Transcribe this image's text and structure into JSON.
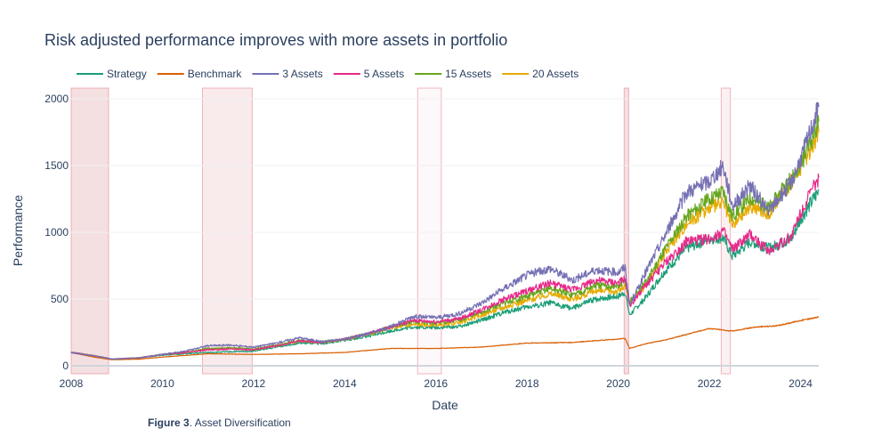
{
  "chart_data": {
    "type": "line",
    "title": "Risk adjusted performance improves with more assets in portfolio",
    "xlabel": "Date",
    "ylabel": "Performance",
    "xlim": [
      2008.0,
      2024.4
    ],
    "ylim": [
      -60,
      2080
    ],
    "x_ticks": [
      "2008",
      "2010",
      "2012",
      "2014",
      "2016",
      "2018",
      "2020",
      "2022",
      "2024"
    ],
    "y_ticks": [
      "0",
      "500",
      "1000",
      "1500",
      "2000"
    ],
    "legend_position": "top-left horizontal",
    "grid": "horizontal",
    "shaded_periods": [
      {
        "start": 2008.0,
        "end": 2008.82,
        "opacity": 0.7
      },
      {
        "start": 2010.88,
        "end": 2011.97,
        "opacity": 0.45
      },
      {
        "start": 2015.6,
        "end": 2016.12,
        "opacity": 0.15
      },
      {
        "start": 2020.13,
        "end": 2020.23,
        "opacity": 0.7
      },
      {
        "start": 2022.26,
        "end": 2022.46,
        "opacity": 0.3
      }
    ],
    "series": [
      {
        "name": "Strategy",
        "color": "#1b9e77",
        "x": [
          2008.0,
          2008.5,
          2008.9,
          2009.5,
          2010.0,
          2010.5,
          2011.0,
          2011.5,
          2012.0,
          2012.5,
          2013.0,
          2013.5,
          2014.0,
          2014.5,
          2015.0,
          2015.5,
          2016.0,
          2016.5,
          2017.0,
          2017.5,
          2018.0,
          2018.5,
          2019.0,
          2019.5,
          2020.0,
          2020.15,
          2020.25,
          2020.6,
          2021.0,
          2021.5,
          2022.0,
          2022.3,
          2022.5,
          2022.9,
          2023.3,
          2023.8,
          2024.0,
          2024.4
        ],
        "y": [
          100,
          75,
          50,
          60,
          80,
          90,
          100,
          105,
          110,
          140,
          170,
          165,
          190,
          220,
          260,
          290,
          285,
          295,
          340,
          400,
          440,
          470,
          430,
          500,
          520,
          550,
          380,
          510,
          700,
          880,
          950,
          960,
          820,
          930,
          880,
          950,
          1100,
          1310
        ]
      },
      {
        "name": "Benchmark",
        "color": "#d95f02",
        "x": [
          2008.0,
          2008.5,
          2008.9,
          2009.5,
          2010.0,
          2011.0,
          2012.0,
          2013.0,
          2014.0,
          2015.0,
          2016.0,
          2017.0,
          2018.0,
          2019.0,
          2020.0,
          2020.15,
          2020.25,
          2020.6,
          2021.0,
          2022.0,
          2022.5,
          2023.0,
          2023.5,
          2024.0,
          2024.4
        ],
        "y": [
          100,
          65,
          45,
          50,
          65,
          90,
          85,
          90,
          100,
          130,
          130,
          140,
          170,
          175,
          200,
          205,
          130,
          165,
          190,
          280,
          260,
          290,
          300,
          340,
          365
        ]
      },
      {
        "name": "3 Assets",
        "color": "#7570b3",
        "x": [
          2008.0,
          2008.5,
          2008.9,
          2009.5,
          2010.0,
          2010.5,
          2011.0,
          2011.5,
          2012.0,
          2012.5,
          2013.0,
          2013.5,
          2014.0,
          2014.5,
          2015.0,
          2015.5,
          2016.0,
          2016.5,
          2017.0,
          2017.5,
          2018.0,
          2018.5,
          2019.0,
          2019.5,
          2020.0,
          2020.15,
          2020.25,
          2020.6,
          2021.0,
          2021.5,
          2022.0,
          2022.3,
          2022.5,
          2022.9,
          2023.3,
          2023.8,
          2024.0,
          2024.4
        ],
        "y": [
          100,
          75,
          50,
          60,
          85,
          110,
          150,
          155,
          140,
          170,
          210,
          180,
          200,
          240,
          290,
          370,
          360,
          390,
          470,
          580,
          680,
          730,
          640,
          720,
          700,
          740,
          450,
          700,
          960,
          1300,
          1380,
          1500,
          1200,
          1350,
          1150,
          1380,
          1550,
          1940
        ]
      },
      {
        "name": "5 Assets",
        "color": "#e7298a",
        "x": [
          2008.0,
          2008.5,
          2008.9,
          2009.5,
          2010.0,
          2010.5,
          2011.0,
          2011.5,
          2012.0,
          2012.5,
          2013.0,
          2013.5,
          2014.0,
          2014.5,
          2015.0,
          2015.5,
          2016.0,
          2016.5,
          2017.0,
          2017.5,
          2018.0,
          2018.5,
          2019.0,
          2019.5,
          2020.0,
          2020.15,
          2020.25,
          2020.6,
          2021.0,
          2021.5,
          2022.0,
          2022.3,
          2022.5,
          2022.9,
          2023.3,
          2023.8,
          2024.0,
          2024.4
        ],
        "y": [
          100,
          75,
          50,
          60,
          85,
          100,
          120,
          125,
          120,
          150,
          185,
          175,
          200,
          240,
          290,
          340,
          330,
          350,
          420,
          500,
          560,
          620,
          570,
          640,
          620,
          650,
          450,
          600,
          760,
          930,
          950,
          1010,
          870,
          980,
          860,
          970,
          1150,
          1410
        ]
      },
      {
        "name": "15 Assets",
        "color": "#66a61e",
        "x": [
          2008.0,
          2008.5,
          2008.9,
          2009.5,
          2010.0,
          2010.5,
          2011.0,
          2011.5,
          2012.0,
          2012.5,
          2013.0,
          2013.5,
          2014.0,
          2014.5,
          2015.0,
          2015.5,
          2016.0,
          2016.5,
          2017.0,
          2017.5,
          2018.0,
          2018.5,
          2019.0,
          2019.5,
          2020.0,
          2020.15,
          2020.25,
          2020.6,
          2021.0,
          2021.5,
          2022.0,
          2022.3,
          2022.5,
          2022.9,
          2023.3,
          2023.8,
          2024.0,
          2024.4
        ],
        "y": [
          100,
          75,
          50,
          60,
          85,
          100,
          130,
          135,
          125,
          155,
          190,
          180,
          200,
          240,
          290,
          330,
          320,
          340,
          400,
          470,
          520,
          580,
          530,
          600,
          590,
          640,
          480,
          620,
          860,
          1120,
          1250,
          1310,
          1120,
          1260,
          1180,
          1400,
          1500,
          1830
        ]
      },
      {
        "name": "20 Assets",
        "color": "#e6ab02",
        "x": [
          2008.0,
          2008.5,
          2008.9,
          2009.5,
          2010.0,
          2010.5,
          2011.0,
          2011.5,
          2012.0,
          2012.5,
          2013.0,
          2013.5,
          2014.0,
          2014.5,
          2015.0,
          2015.5,
          2016.0,
          2016.5,
          2017.0,
          2017.5,
          2018.0,
          2018.5,
          2019.0,
          2019.5,
          2020.0,
          2020.15,
          2020.25,
          2020.6,
          2021.0,
          2021.5,
          2022.0,
          2022.3,
          2022.5,
          2022.9,
          2023.3,
          2023.8,
          2024.0,
          2024.4
        ],
        "y": [
          100,
          75,
          50,
          60,
          85,
          100,
          125,
          130,
          120,
          150,
          185,
          175,
          200,
          235,
          280,
          310,
          300,
          320,
          380,
          440,
          490,
          540,
          500,
          560,
          560,
          600,
          470,
          600,
          830,
          1070,
          1180,
          1220,
          1050,
          1200,
          1140,
          1380,
          1480,
          1750
        ]
      }
    ]
  },
  "caption": {
    "label": "Figure 3",
    "text": ". Asset Diversification"
  }
}
